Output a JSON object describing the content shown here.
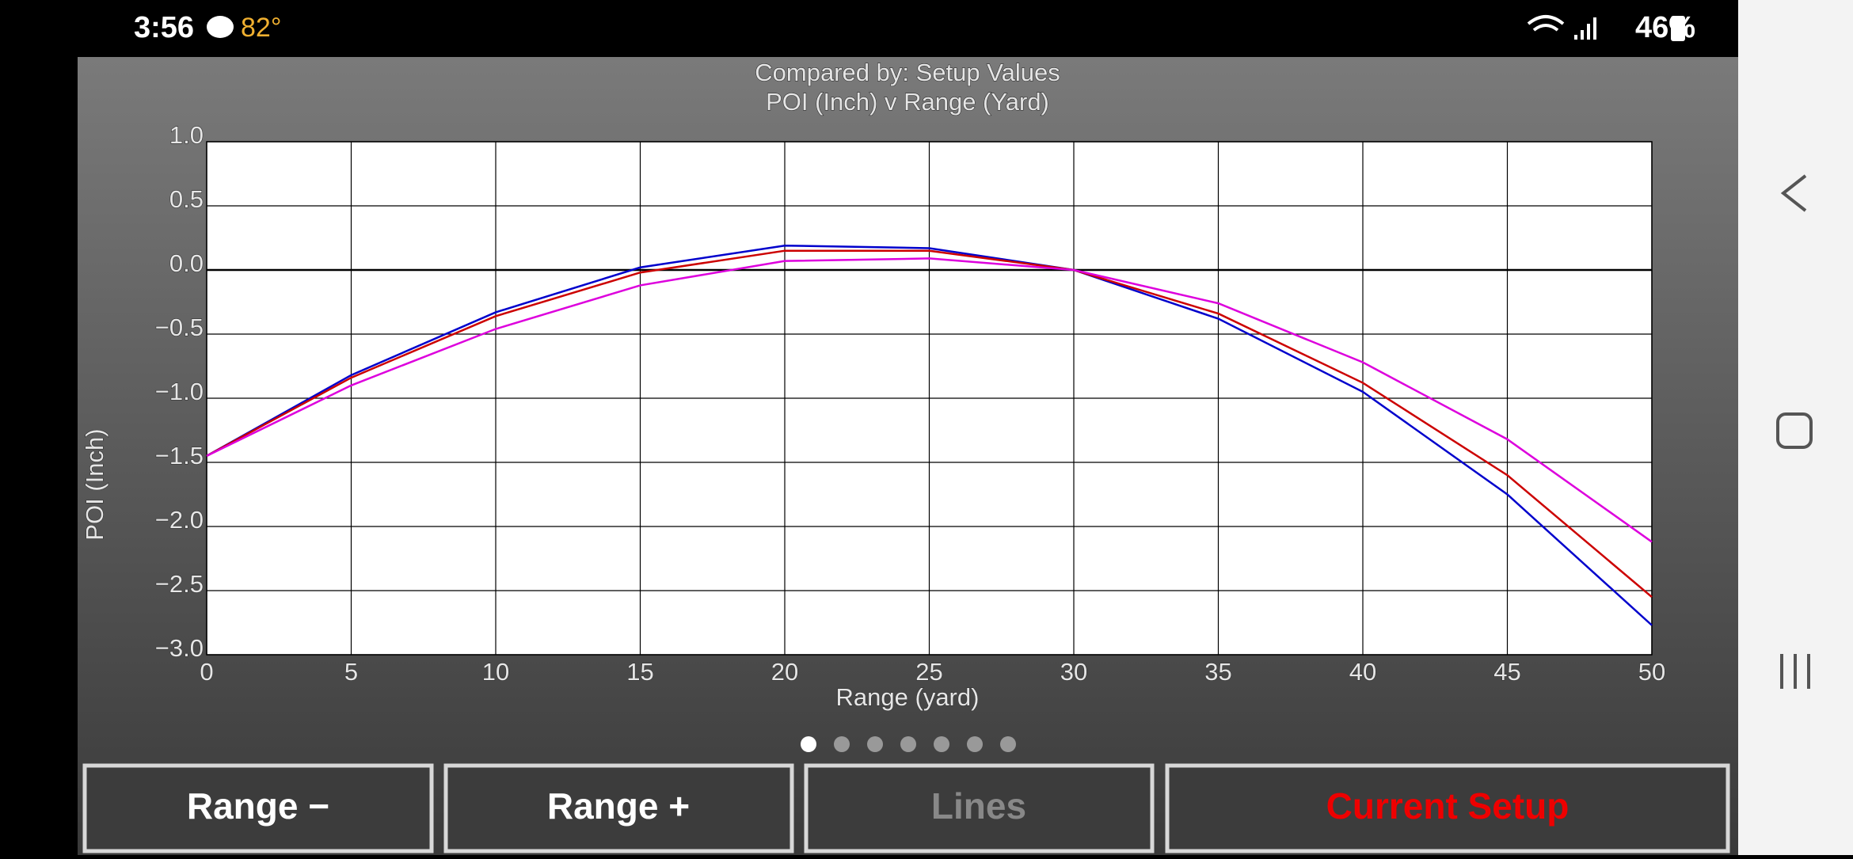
{
  "status_bar": {
    "time": "3:56",
    "temperature": "82°",
    "battery": "46%"
  },
  "chart_data": {
    "type": "line",
    "title": "Compared by: Setup Values",
    "subtitle": "POI (Inch) v Range (Yard)",
    "x_label": "Range (yard)",
    "y_label": "POI (Inch)",
    "x": [
      0,
      5,
      10,
      15,
      20,
      25,
      30,
      35,
      40,
      45,
      50
    ],
    "series": [
      {
        "color": "#0000cc",
        "values": [
          -1.45,
          -0.82,
          -0.33,
          0.02,
          0.19,
          0.17,
          0.0,
          -0.38,
          -0.95,
          -1.75,
          -2.77
        ]
      },
      {
        "color": "#cc0000",
        "values": [
          -1.45,
          -0.84,
          -0.36,
          -0.02,
          0.15,
          0.15,
          0.0,
          -0.34,
          -0.88,
          -1.6,
          -2.55
        ]
      },
      {
        "color": "#dd00dd",
        "values": [
          -1.45,
          -0.9,
          -0.46,
          -0.12,
          0.07,
          0.09,
          0.0,
          -0.26,
          -0.72,
          -1.32,
          -2.12
        ]
      }
    ],
    "xlim": [
      0,
      50
    ],
    "ylim": [
      -3,
      1
    ],
    "xticks": [
      0,
      5,
      10,
      15,
      20,
      25,
      30,
      35,
      40,
      45,
      50
    ],
    "yticks": [
      {
        "value": -3,
        "label": "−3.0"
      },
      {
        "value": -2.5,
        "label": "−2.5"
      },
      {
        "value": -2,
        "label": "−2.0"
      },
      {
        "value": -1.5,
        "label": "−1.5"
      },
      {
        "value": -1,
        "label": "−1.0"
      },
      {
        "value": -0.5,
        "label": "−0.5"
      },
      {
        "value": 0,
        "label": "0.0"
      },
      {
        "value": 0.5,
        "label": "0.5"
      },
      {
        "value": 1,
        "label": "1.0"
      }
    ],
    "grid": true
  },
  "buttons": [
    "Range −",
    "Range +",
    "Lines",
    "Current Setup"
  ]
}
